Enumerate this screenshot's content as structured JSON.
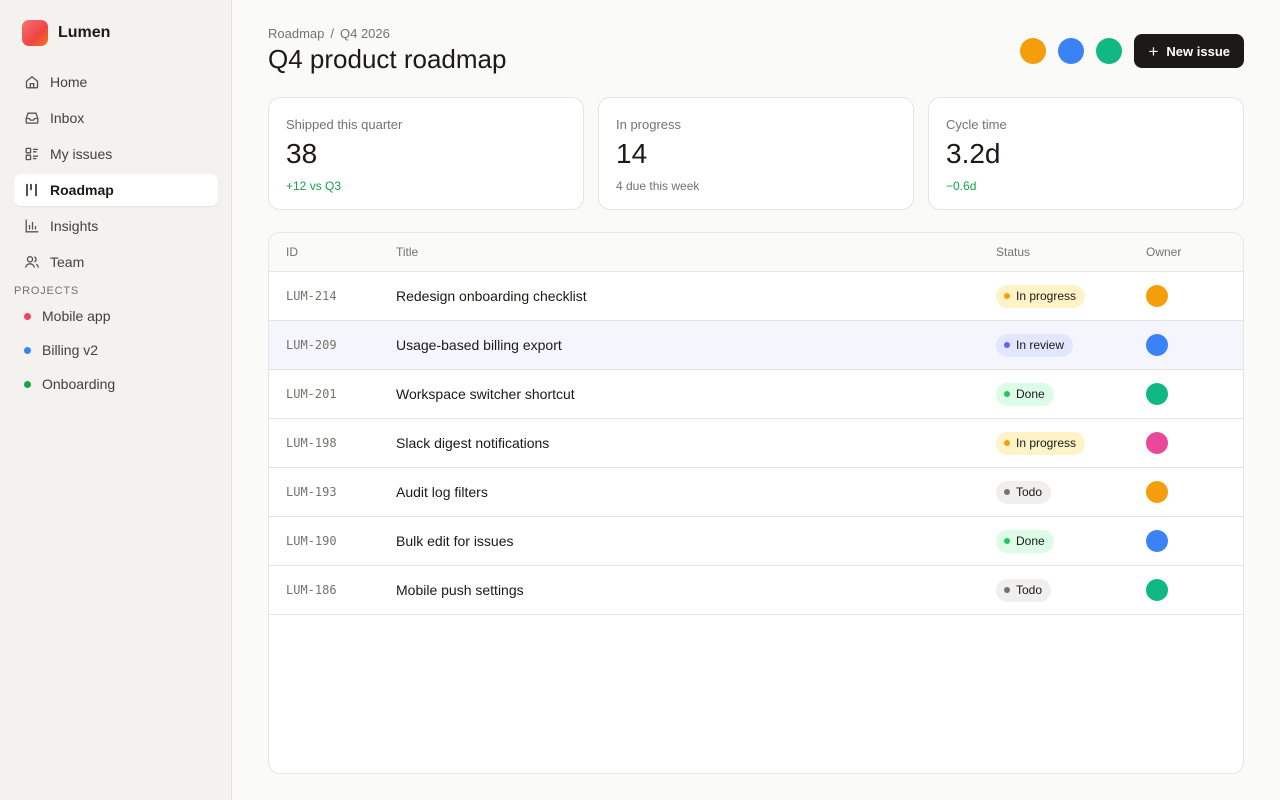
{
  "app": {
    "name": "Lumen"
  },
  "sidebar": {
    "nav": [
      {
        "label": "Home",
        "icon": "home-icon"
      },
      {
        "label": "Inbox",
        "icon": "inbox-icon"
      },
      {
        "label": "My issues",
        "icon": "list-icon"
      },
      {
        "label": "Roadmap",
        "icon": "roadmap-icon",
        "active": true
      },
      {
        "label": "Insights",
        "icon": "bar-chart-icon"
      },
      {
        "label": "Team",
        "icon": "users-icon"
      }
    ],
    "projects_label": "PROJECTS",
    "projects": [
      {
        "label": "Mobile app",
        "color": "#f43f5e"
      },
      {
        "label": "Billing v2",
        "color": "#3b82f6"
      },
      {
        "label": "Onboarding",
        "color": "#16a34a"
      }
    ]
  },
  "header": {
    "breadcrumb": [
      "Roadmap",
      "Q4 2026"
    ],
    "breadcrumb_sep": "/",
    "title": "Q4 product roadmap",
    "avatars": [
      "#f59e0b",
      "#3b82f6",
      "#10b981"
    ],
    "new_issue_label": "New issue"
  },
  "stats": [
    {
      "label": "Shipped this quarter",
      "value": "38",
      "note": "+12 vs Q3",
      "note_color": "#16a34a"
    },
    {
      "label": "In progress",
      "value": "14",
      "note": "4 due this week",
      "note_color": "#78716c"
    },
    {
      "label": "Cycle time",
      "value": "3.2d",
      "note": "−0.6d",
      "note_color": "#16a34a"
    }
  ],
  "table": {
    "columns": {
      "id": "ID",
      "title": "Title",
      "status": "Status",
      "owner": "Owner"
    },
    "rows": [
      {
        "id": "LUM-214",
        "title": "Redesign onboarding checklist",
        "status": "In progress",
        "owner_color": "#f59e0b"
      },
      {
        "id": "LUM-209",
        "title": "Usage-based billing export",
        "status": "In review",
        "owner_color": "#3b82f6",
        "selected": true
      },
      {
        "id": "LUM-201",
        "title": "Workspace switcher shortcut",
        "status": "Done",
        "owner_color": "#10b981"
      },
      {
        "id": "LUM-198",
        "title": "Slack digest notifications",
        "status": "In progress",
        "owner_color": "#ec4899"
      },
      {
        "id": "LUM-193",
        "title": "Audit log filters",
        "status": "Todo",
        "owner_color": "#f59e0b"
      },
      {
        "id": "LUM-190",
        "title": "Bulk edit for issues",
        "status": "Done",
        "owner_color": "#3b82f6"
      },
      {
        "id": "LUM-186",
        "title": "Mobile push settings",
        "status": "Todo",
        "owner_color": "#10b981"
      }
    ]
  },
  "status_styles": {
    "In progress": {
      "bg": "#fef3c7",
      "dot": "#f59e0b"
    },
    "In review": {
      "bg": "#e0e7ff",
      "dot": "#6366f1"
    },
    "Done": {
      "bg": "#dcfce7",
      "dot": "#22c55e"
    },
    "Todo": {
      "bg": "#f0efed",
      "dot": "#78716c"
    }
  }
}
